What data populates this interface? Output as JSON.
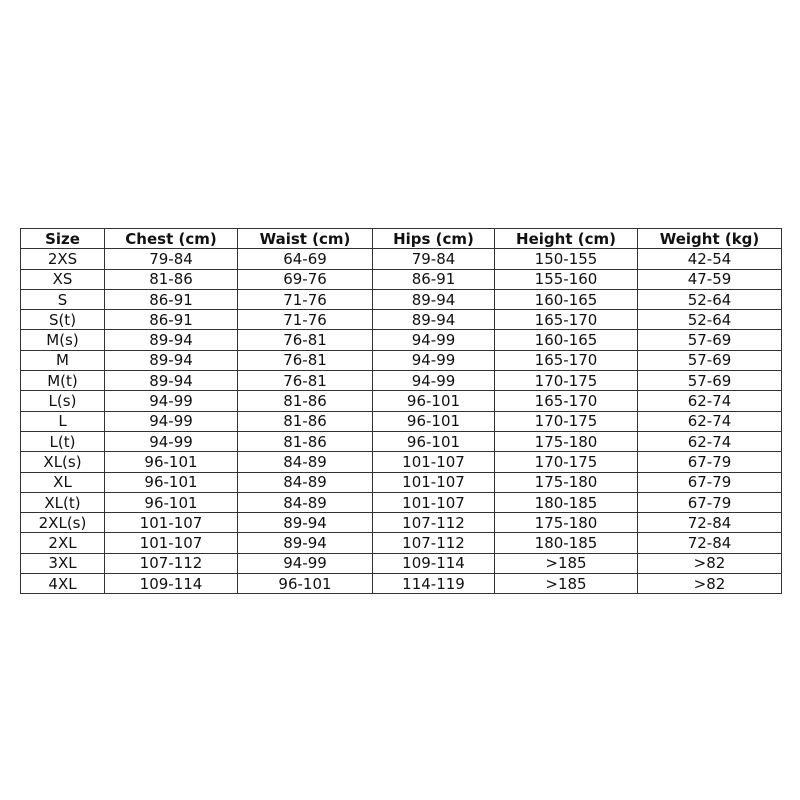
{
  "table": {
    "headers": [
      "Size",
      "Chest (cm)",
      "Waist (cm)",
      "Hips (cm)",
      "Height (cm)",
      "Weight (kg)"
    ],
    "rows": [
      [
        "2XS",
        "79-84",
        "64-69",
        "79-84",
        "150-155",
        "42-54"
      ],
      [
        "XS",
        "81-86",
        "69-76",
        "86-91",
        "155-160",
        "47-59"
      ],
      [
        "S",
        "86-91",
        "71-76",
        "89-94",
        "160-165",
        "52-64"
      ],
      [
        "S(t)",
        "86-91",
        "71-76",
        "89-94",
        "165-170",
        "52-64"
      ],
      [
        "M(s)",
        "89-94",
        "76-81",
        "94-99",
        "160-165",
        "57-69"
      ],
      [
        "M",
        "89-94",
        "76-81",
        "94-99",
        "165-170",
        "57-69"
      ],
      [
        "M(t)",
        "89-94",
        "76-81",
        "94-99",
        "170-175",
        "57-69"
      ],
      [
        "L(s)",
        "94-99",
        "81-86",
        "96-101",
        "165-170",
        "62-74"
      ],
      [
        "L",
        "94-99",
        "81-86",
        "96-101",
        "170-175",
        "62-74"
      ],
      [
        "L(t)",
        "94-99",
        "81-86",
        "96-101",
        "175-180",
        "62-74"
      ],
      [
        "XL(s)",
        "96-101",
        "84-89",
        "101-107",
        "170-175",
        "67-79"
      ],
      [
        "XL",
        "96-101",
        "84-89",
        "101-107",
        "175-180",
        "67-79"
      ],
      [
        "XL(t)",
        "96-101",
        "84-89",
        "101-107",
        "180-185",
        "67-79"
      ],
      [
        "2XL(s)",
        "101-107",
        "89-94",
        "107-112",
        "175-180",
        "72-84"
      ],
      [
        "2XL",
        "101-107",
        "89-94",
        "107-112",
        "180-185",
        "72-84"
      ],
      [
        "3XL",
        "107-112",
        "94-99",
        "109-114",
        ">185",
        ">82"
      ],
      [
        "4XL",
        "109-114",
        "96-101",
        "114-119",
        ">185",
        ">82"
      ]
    ]
  }
}
